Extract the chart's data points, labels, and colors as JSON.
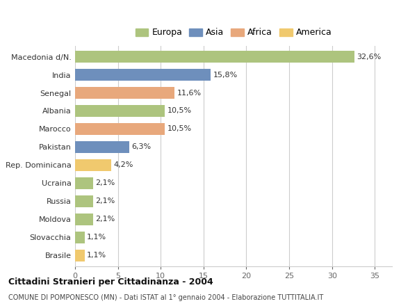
{
  "categories": [
    "Macedonia d/N.",
    "India",
    "Senegal",
    "Albania",
    "Marocco",
    "Pakistan",
    "Rep. Dominicana",
    "Ucraina",
    "Russia",
    "Moldova",
    "Slovacchia",
    "Brasile"
  ],
  "values": [
    32.6,
    15.8,
    11.6,
    10.5,
    10.5,
    6.3,
    4.2,
    2.1,
    2.1,
    2.1,
    1.1,
    1.1
  ],
  "labels": [
    "32,6%",
    "15,8%",
    "11,6%",
    "10,5%",
    "10,5%",
    "6,3%",
    "4,2%",
    "2,1%",
    "2,1%",
    "2,1%",
    "1,1%",
    "1,1%"
  ],
  "colors": [
    "#adc47e",
    "#6e8fbc",
    "#e8a87c",
    "#adc47e",
    "#e8a87c",
    "#6e8fbc",
    "#f0c96e",
    "#adc47e",
    "#adc47e",
    "#adc47e",
    "#adc47e",
    "#f0c96e"
  ],
  "legend_labels": [
    "Europa",
    "Asia",
    "Africa",
    "America"
  ],
  "legend_colors": [
    "#adc47e",
    "#6e8fbc",
    "#e8a87c",
    "#f0c96e"
  ],
  "title1": "Cittadini Stranieri per Cittadinanza - 2004",
  "title2": "COMUNE DI POMPONESCO (MN) - Dati ISTAT al 1° gennaio 2004 - Elaborazione TUTTITALIA.IT",
  "xlim": [
    0,
    37
  ],
  "xticks": [
    0,
    5,
    10,
    15,
    20,
    25,
    30,
    35
  ],
  "background_color": "#ffffff",
  "bar_height": 0.65
}
